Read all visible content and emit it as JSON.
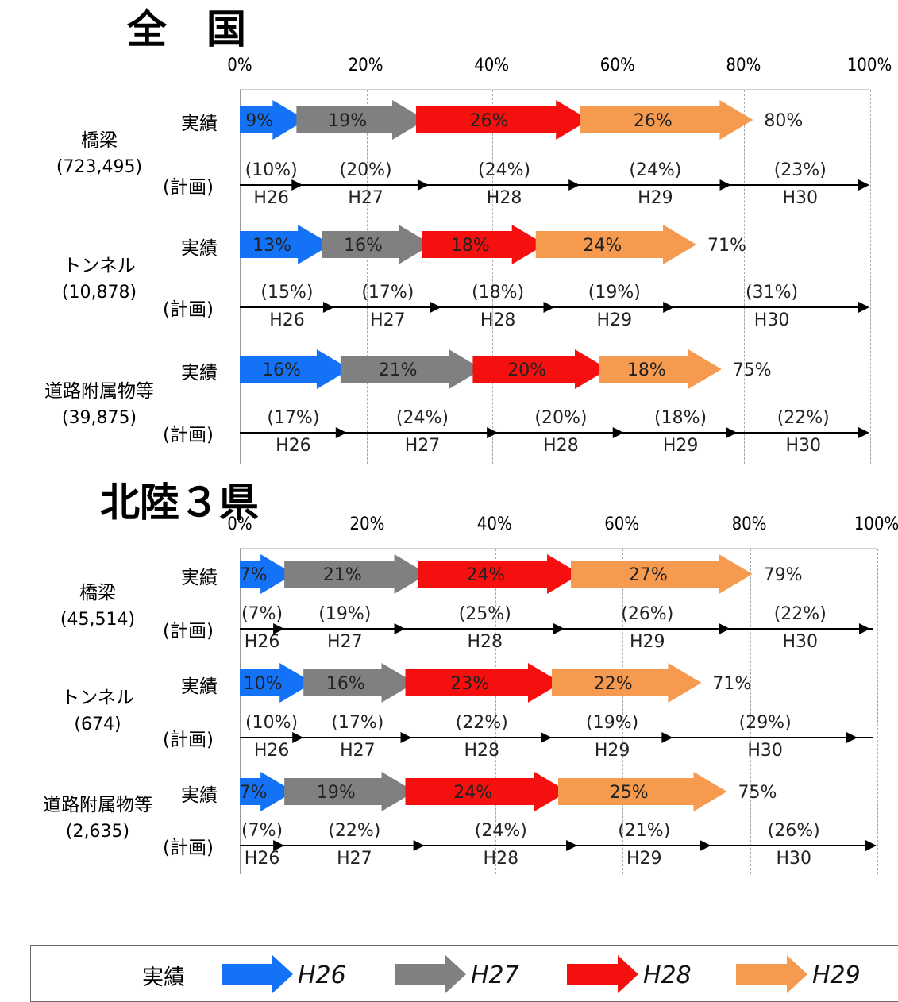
{
  "colors": {
    "H26": "#1472F6",
    "H27": "#808080",
    "H28": "#F50F0F",
    "H29": "#F59A4F"
  },
  "axis_ticks": [
    "0%",
    "20%",
    "40%",
    "60%",
    "80%",
    "100%"
  ],
  "row_labels": {
    "actual": "実績",
    "plan": "(計画)"
  },
  "legend": {
    "label": "実績",
    "items": [
      "H26",
      "H27",
      "H28",
      "H29"
    ]
  },
  "chart_data": [
    {
      "type": "bar",
      "title": "全　国",
      "xlim": [
        0,
        100
      ],
      "groups": [
        {
          "name": "橋梁",
          "count": "(723,495)",
          "actual": [
            {
              "label": "9%",
              "value": 9
            },
            {
              "label": "19%",
              "value": 19
            },
            {
              "label": "26%",
              "value": 26
            },
            {
              "label": "26%",
              "value": 26
            }
          ],
          "actual_total": "80%",
          "plan": [
            {
              "year": "H26",
              "label": "(10%)",
              "value": 10
            },
            {
              "year": "H27",
              "label": "(20%)",
              "value": 20
            },
            {
              "year": "H28",
              "label": "(24%)",
              "value": 24
            },
            {
              "year": "H29",
              "label": "(24%)",
              "value": 24
            },
            {
              "year": "H30",
              "label": "(23%)",
              "value": 23
            }
          ]
        },
        {
          "name": "トンネル",
          "count": "(10,878)",
          "actual": [
            {
              "label": "13%",
              "value": 13
            },
            {
              "label": "16%",
              "value": 16
            },
            {
              "label": "18%",
              "value": 18
            },
            {
              "label": "24%",
              "value": 24
            }
          ],
          "actual_total": "71%",
          "plan": [
            {
              "year": "H26",
              "label": "(15%)",
              "value": 15
            },
            {
              "year": "H27",
              "label": "(17%)",
              "value": 17
            },
            {
              "year": "H28",
              "label": "(18%)",
              "value": 18
            },
            {
              "year": "H29",
              "label": "(19%)",
              "value": 19
            },
            {
              "year": "H30",
              "label": "(31%)",
              "value": 31
            }
          ]
        },
        {
          "name": "道路附属物等",
          "count": "(39,875)",
          "actual": [
            {
              "label": "16%",
              "value": 16
            },
            {
              "label": "21%",
              "value": 21
            },
            {
              "label": "20%",
              "value": 20
            },
            {
              "label": "18%",
              "value": 18
            }
          ],
          "actual_total": "75%",
          "plan": [
            {
              "year": "H26",
              "label": "(17%)",
              "value": 17
            },
            {
              "year": "H27",
              "label": "(24%)",
              "value": 24
            },
            {
              "year": "H28",
              "label": "(20%)",
              "value": 20
            },
            {
              "year": "H29",
              "label": "(18%)",
              "value": 18
            },
            {
              "year": "H30",
              "label": "(22%)",
              "value": 22
            }
          ]
        }
      ]
    },
    {
      "type": "bar",
      "title": "北陸３県",
      "xlim": [
        0,
        100
      ],
      "groups": [
        {
          "name": "橋梁",
          "count": "(45,514)",
          "actual": [
            {
              "label": "7%",
              "value": 7
            },
            {
              "label": "21%",
              "value": 21
            },
            {
              "label": "24%",
              "value": 24
            },
            {
              "label": "27%",
              "value": 27
            }
          ],
          "actual_total": "79%",
          "plan": [
            {
              "year": "H26",
              "label": "(7%)",
              "value": 7
            },
            {
              "year": "H27",
              "label": "(19%)",
              "value": 19
            },
            {
              "year": "H28",
              "label": "(25%)",
              "value": 25
            },
            {
              "year": "H29",
              "label": "(26%)",
              "value": 26
            },
            {
              "year": "H30",
              "label": "(22%)",
              "value": 22
            }
          ]
        },
        {
          "name": "トンネル",
          "count": "(674)",
          "actual": [
            {
              "label": "10%",
              "value": 10
            },
            {
              "label": "16%",
              "value": 16
            },
            {
              "label": "23%",
              "value": 23
            },
            {
              "label": "22%",
              "value": 22
            }
          ],
          "actual_total": "71%",
          "plan": [
            {
              "year": "H26",
              "label": "(10%)",
              "value": 10
            },
            {
              "year": "H27",
              "label": "(17%)",
              "value": 17
            },
            {
              "year": "H28",
              "label": "(22%)",
              "value": 22
            },
            {
              "year": "H29",
              "label": "(19%)",
              "value": 19
            },
            {
              "year": "H30",
              "label": "(29%)",
              "value": 29
            }
          ]
        },
        {
          "name": "道路附属物等",
          "count": "(2,635)",
          "actual": [
            {
              "label": "7%",
              "value": 7
            },
            {
              "label": "19%",
              "value": 19
            },
            {
              "label": "24%",
              "value": 24
            },
            {
              "label": "25%",
              "value": 25
            }
          ],
          "actual_total": "75%",
          "plan": [
            {
              "year": "H26",
              "label": "(7%)",
              "value": 7
            },
            {
              "year": "H27",
              "label": "(22%)",
              "value": 22
            },
            {
              "year": "H28",
              "label": "(24%)",
              "value": 24
            },
            {
              "year": "H29",
              "label": "(21%)",
              "value": 21
            },
            {
              "year": "H30",
              "label": "(26%)",
              "value": 26
            }
          ]
        }
      ]
    }
  ]
}
